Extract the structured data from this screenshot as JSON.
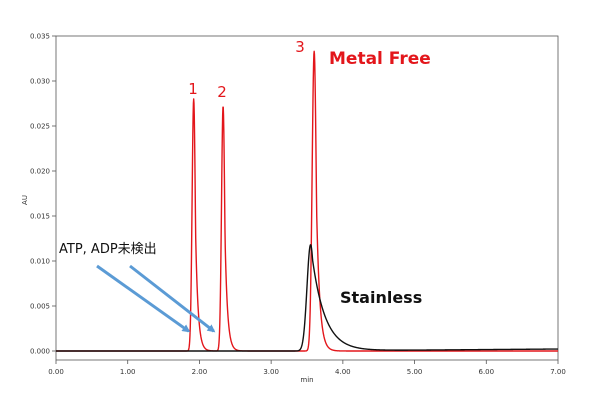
{
  "chart_data": {
    "type": "line",
    "xlabel": "min",
    "ylabel": "AU",
    "xlim": [
      0,
      7
    ],
    "ylim": [
      -0.001,
      0.035
    ],
    "x_ticks": [
      "0.00",
      "1.00",
      "2.00",
      "3.00",
      "4.00",
      "5.00",
      "6.00",
      "7.00"
    ],
    "y_ticks": [
      "0.000",
      "0.005",
      "0.010",
      "0.015",
      "0.020",
      "0.025",
      "0.030",
      "0.035"
    ],
    "series": [
      {
        "name": "Metal Free",
        "color": "#e3161b",
        "peaks": [
          {
            "label": "1",
            "x": 1.92,
            "y": 0.028
          },
          {
            "label": "2",
            "x": 2.33,
            "y": 0.0272
          },
          {
            "label": "3",
            "x": 3.6,
            "y": 0.0333
          }
        ]
      },
      {
        "name": "Stainless",
        "color": "#111111",
        "peaks": [
          {
            "x": 3.55,
            "y": 0.0118
          }
        ]
      }
    ],
    "annotations": [
      {
        "text": "ATP, ADP未検出",
        "arrow_targets_x": [
          1.85,
          2.2
        ]
      }
    ]
  }
}
